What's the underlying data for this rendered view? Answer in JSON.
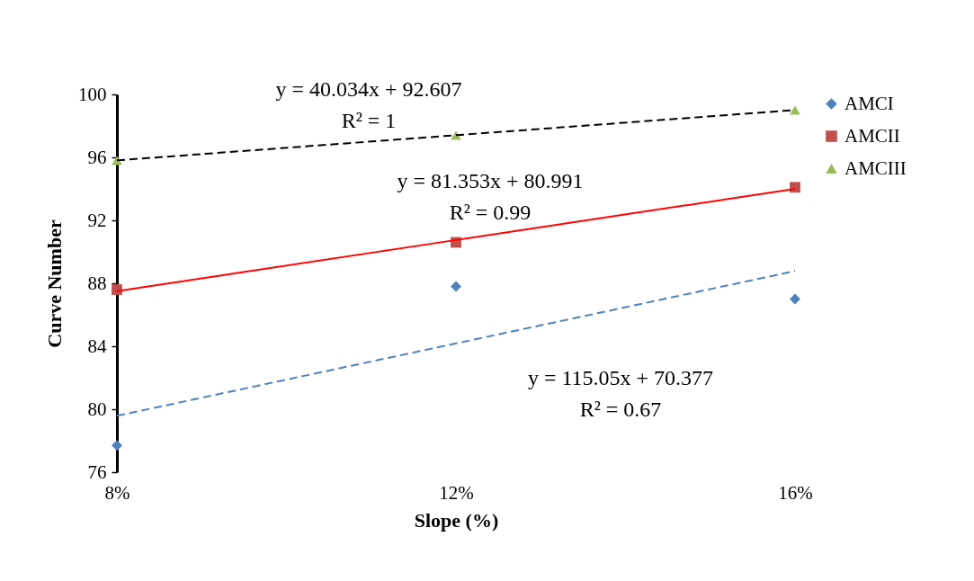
{
  "chart_data": {
    "type": "scatter",
    "xlabel": "Slope (%)",
    "ylabel": "Curve Number",
    "x": [
      8,
      12,
      16
    ],
    "xlim": [
      8,
      16
    ],
    "xticks": [
      {
        "value": 8,
        "label": "8%"
      },
      {
        "value": 12,
        "label": "12%"
      },
      {
        "value": 16,
        "label": "16%"
      }
    ],
    "ylim": [
      76,
      100
    ],
    "yticks": [
      76,
      80,
      84,
      88,
      92,
      96,
      100
    ],
    "grid": false,
    "legend": "right",
    "series": [
      {
        "name": "AMCI",
        "type": "scatter",
        "marker": "diamond",
        "color": "#4f81bd",
        "values": [
          77.7,
          87.8,
          87.0
        ]
      },
      {
        "name": "AMCII",
        "type": "scatter",
        "marker": "square",
        "color": "#c0504d",
        "values": [
          87.6,
          90.6,
          94.1
        ]
      },
      {
        "name": "AMCIII",
        "type": "scatter",
        "marker": "triangle",
        "color": "#9bbb59",
        "values": [
          95.8,
          97.4,
          99.0
        ]
      },
      {
        "type": "line",
        "values": [
          79.58,
          84.18,
          88.78
        ],
        "color": "#4f81bd",
        "line_style": "dashed"
      },
      {
        "type": "line",
        "values": [
          87.5,
          90.75,
          94.0
        ],
        "color": "#ff0000",
        "line_style": "solid"
      },
      {
        "type": "line",
        "values": [
          95.81,
          97.41,
          99.01
        ],
        "color": "#000000",
        "line_style": "dashed"
      }
    ],
    "annotations": [
      "y = 40.034x + 92.607\nR² = 1",
      "y = 81.353x + 80.991\nR² = 0.99",
      "y = 115.05x + 70.377\nR² = 0.67"
    ]
  }
}
